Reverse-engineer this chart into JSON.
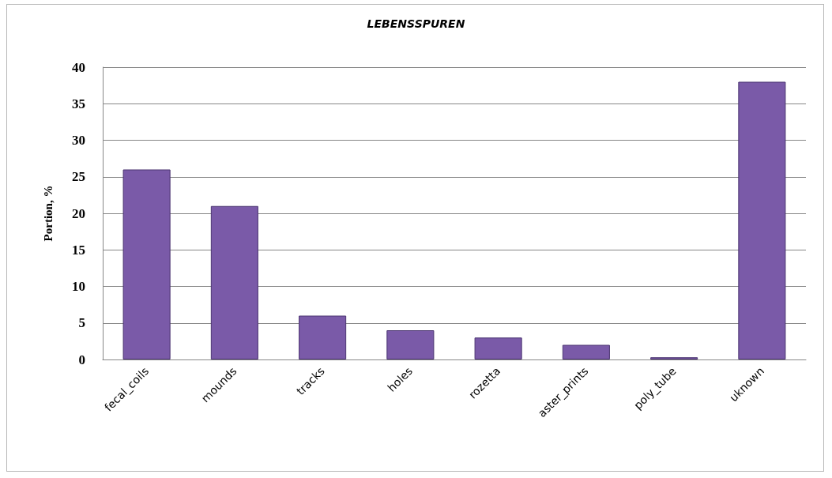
{
  "chart_data": {
    "type": "bar",
    "title": "LEBENSSPUREN",
    "ylabel": "Portion, %",
    "categories": [
      "fecal_coils",
      "mounds",
      "tracks",
      "holes",
      "rozetta",
      "aster_prints",
      "poly_tube",
      "uknown"
    ],
    "values": [
      26,
      21,
      6,
      4,
      3,
      2,
      0.3,
      38
    ],
    "color": "#7a5aa8",
    "ylim": [
      0,
      40
    ],
    "yticks": [
      0,
      5,
      10,
      15,
      20,
      25,
      30,
      35,
      40
    ],
    "grid": "y"
  }
}
